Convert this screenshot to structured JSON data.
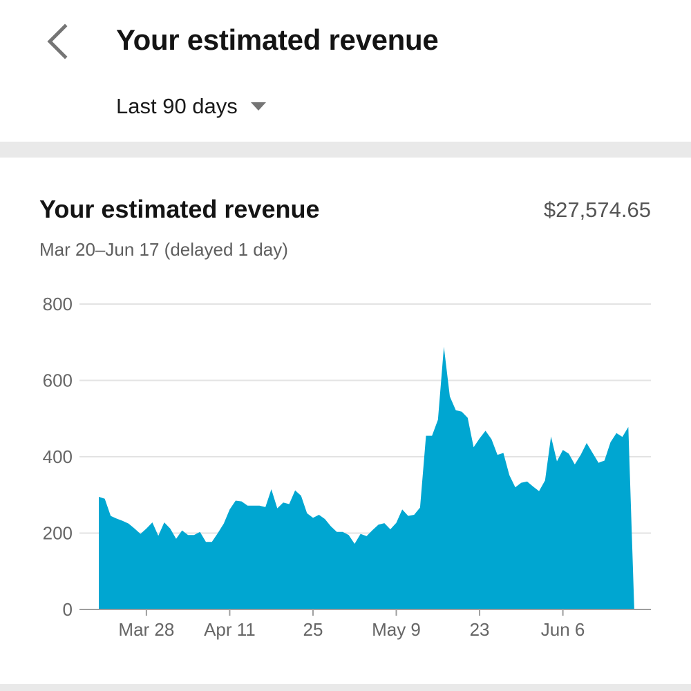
{
  "header": {
    "title": "Your estimated revenue",
    "range_label": "Last 90 days",
    "back_icon": "chevron-left-icon",
    "caret_icon": "caret-down-icon"
  },
  "card": {
    "title": "Your estimated revenue",
    "total": "$27,574.65",
    "subtitle": "Mar 20–Jun 17 (delayed 1 day)"
  },
  "colors": {
    "area_fill": "#00a6d1",
    "grid": "#e3e3e3",
    "axis": "#9e9e9e",
    "tick_text": "#666666"
  },
  "chart_data": {
    "type": "area",
    "ylim": [
      0,
      800
    ],
    "y_ticks": [
      0,
      200,
      400,
      600,
      800
    ],
    "x_tick_labels": [
      {
        "day": 8,
        "label": "Mar 28"
      },
      {
        "day": 22,
        "label": "Apr 11"
      },
      {
        "day": 36,
        "label": "25"
      },
      {
        "day": 50,
        "label": "May 9"
      },
      {
        "day": 64,
        "label": "23"
      },
      {
        "day": 78,
        "label": "Jun 6"
      }
    ],
    "start_date": "Mar 20",
    "series": [
      {
        "values": [
          295,
          290,
          245,
          238,
          232,
          225,
          212,
          198,
          212,
          228,
          193,
          228,
          212,
          185,
          207,
          195,
          195,
          203,
          177,
          177,
          200,
          225,
          262,
          285,
          283,
          272,
          272,
          272,
          268,
          315,
          265,
          280,
          276,
          312,
          298,
          252,
          240,
          248,
          237,
          218,
          203,
          203,
          195,
          172,
          198,
          192,
          208,
          222,
          226,
          210,
          227,
          262,
          245,
          248,
          267,
          455,
          455,
          497,
          688,
          558,
          522,
          518,
          502,
          425,
          448,
          468,
          446,
          405,
          410,
          352,
          320,
          332,
          335,
          322,
          310,
          338,
          453,
          388,
          418,
          408,
          380,
          405,
          436,
          410,
          384,
          390,
          438,
          462,
          452,
          478,
          0
        ]
      }
    ]
  }
}
